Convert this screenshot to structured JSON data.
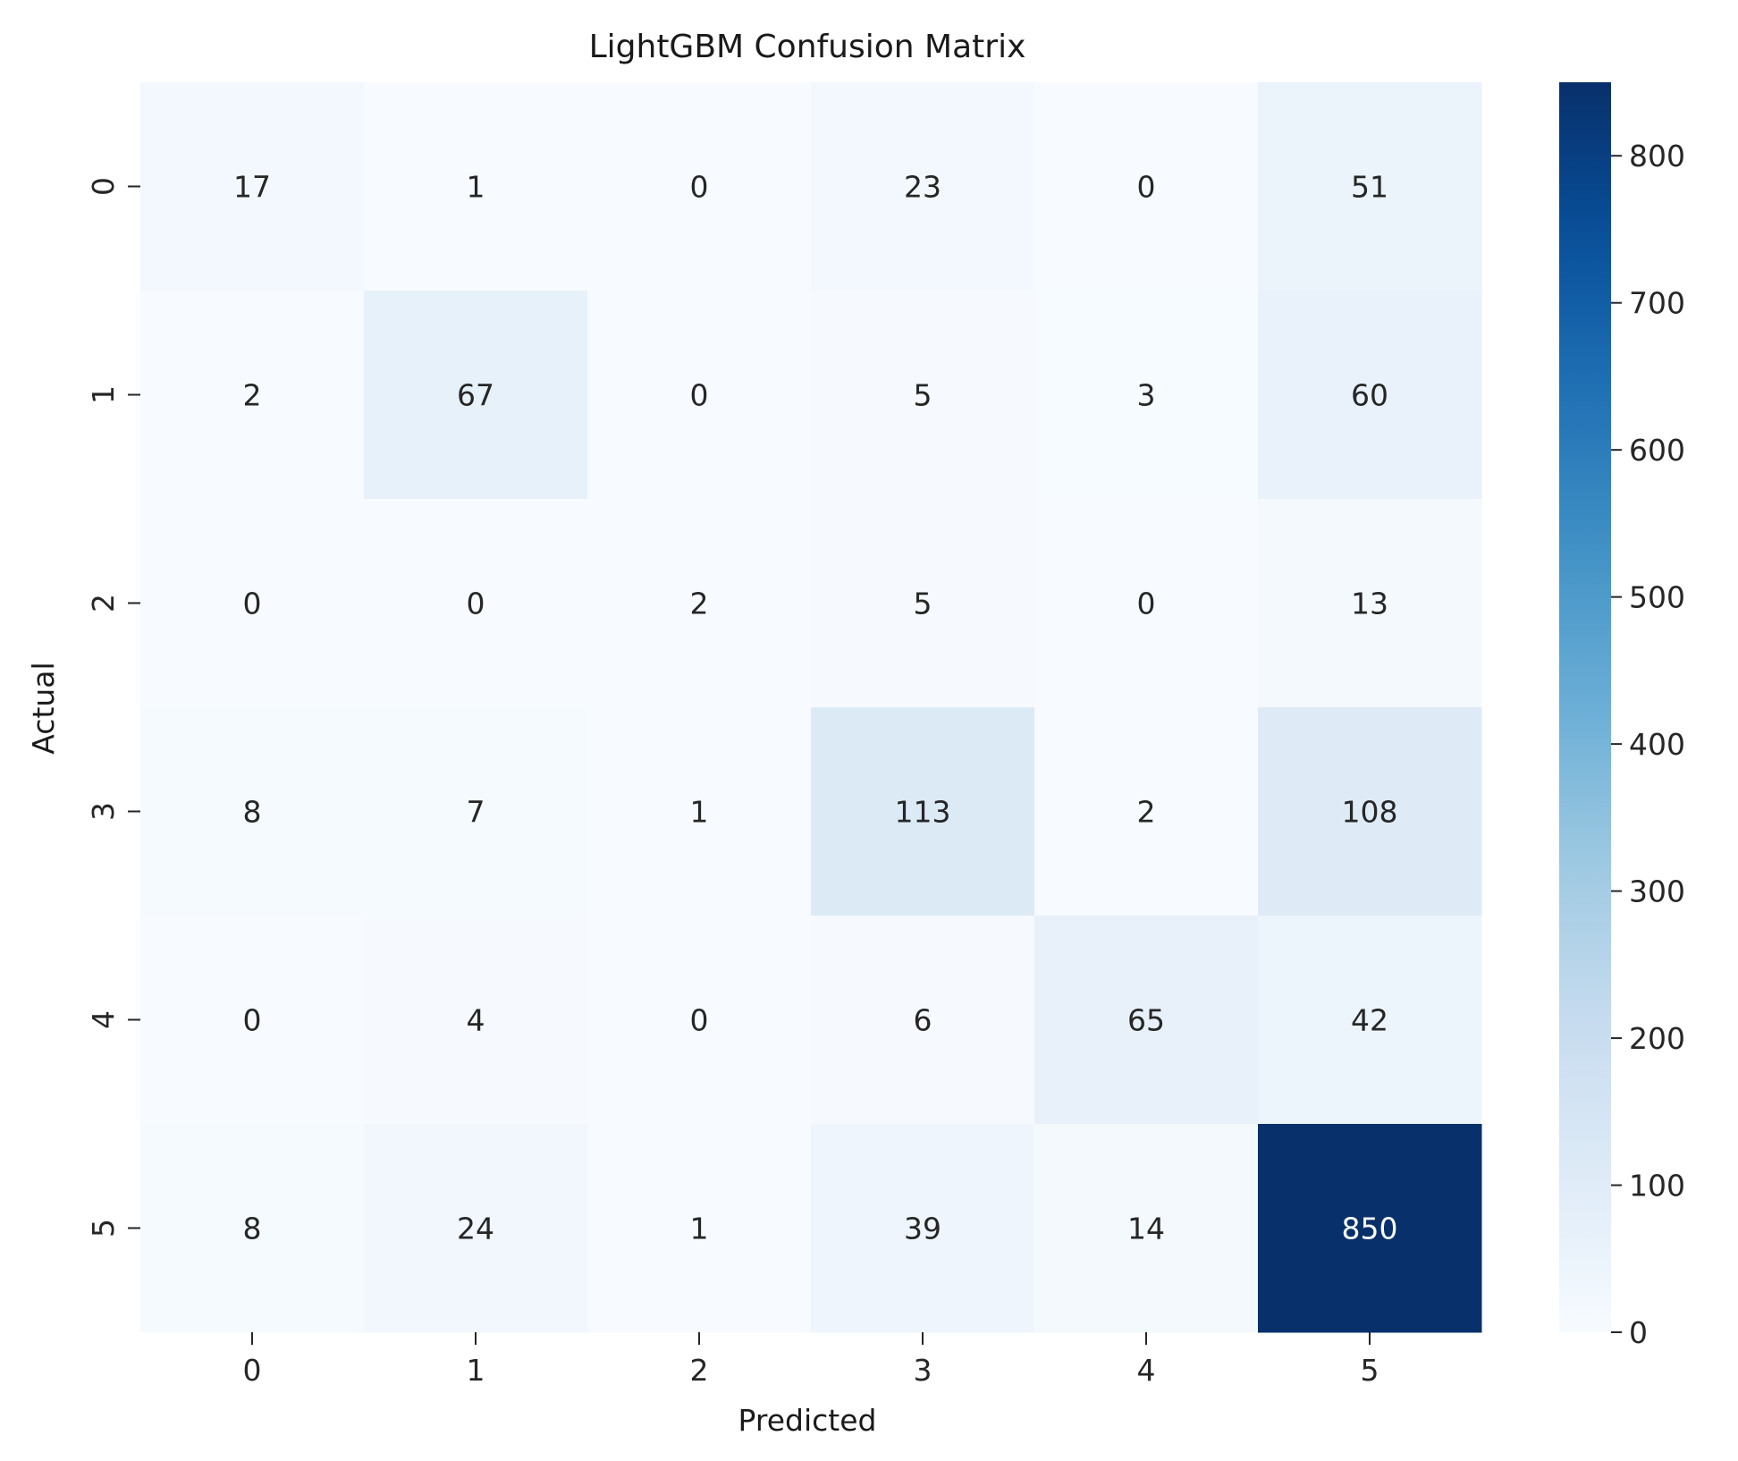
{
  "chart_data": {
    "type": "heatmap",
    "title": "LightGBM Confusion Matrix",
    "xlabel": "Predicted",
    "ylabel": "Actual",
    "x_categories": [
      "0",
      "1",
      "2",
      "3",
      "4",
      "5"
    ],
    "y_categories": [
      "0",
      "1",
      "2",
      "3",
      "4",
      "5"
    ],
    "values": [
      [
        17,
        1,
        0,
        23,
        0,
        51
      ],
      [
        2,
        67,
        0,
        5,
        3,
        60
      ],
      [
        0,
        0,
        2,
        5,
        0,
        13
      ],
      [
        8,
        7,
        1,
        113,
        2,
        108
      ],
      [
        0,
        4,
        0,
        6,
        65,
        42
      ],
      [
        8,
        24,
        1,
        39,
        14,
        850
      ]
    ],
    "colormap": "Blues",
    "color_range": [
      0,
      850
    ],
    "colorbar_ticks": [
      0,
      100,
      200,
      300,
      400,
      500,
      600,
      700,
      800
    ],
    "colorbar_tick_labels": [
      "0",
      "100",
      "200",
      "300",
      "400",
      "500",
      "600",
      "700",
      "800"
    ],
    "colors": {
      "low": "#f7fbff",
      "high": "#08306b",
      "text_dark": "#262626",
      "text_light": "#ffffff"
    }
  }
}
